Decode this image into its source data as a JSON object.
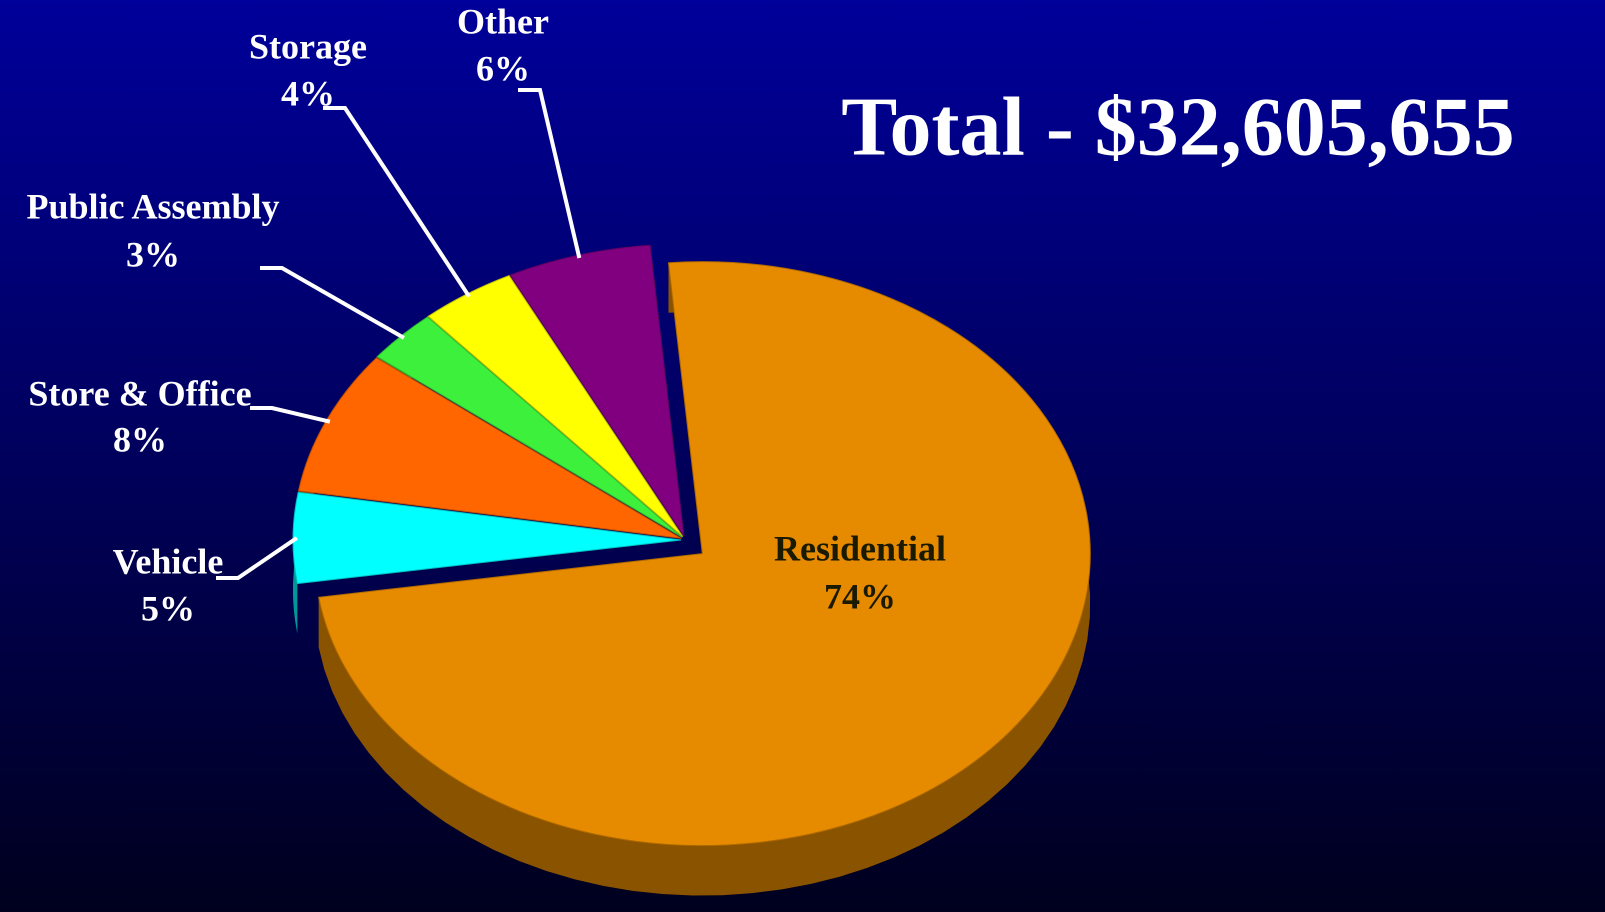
{
  "chart_data": {
    "type": "pie",
    "title": "Total - $32,605,655",
    "categories": [
      "Residential",
      "Vehicle",
      "Store & Office",
      "Public Assembly",
      "Storage",
      "Other"
    ],
    "values": [
      74,
      5,
      8,
      3,
      4,
      6
    ],
    "value_labels": [
      "74%",
      "5%",
      "8%",
      "3%",
      "4%",
      "6%"
    ],
    "colors": [
      "#e68a00",
      "#00ffff",
      "#ff6600",
      "#3cf03c",
      "#ffff00",
      "#800080"
    ]
  }
}
